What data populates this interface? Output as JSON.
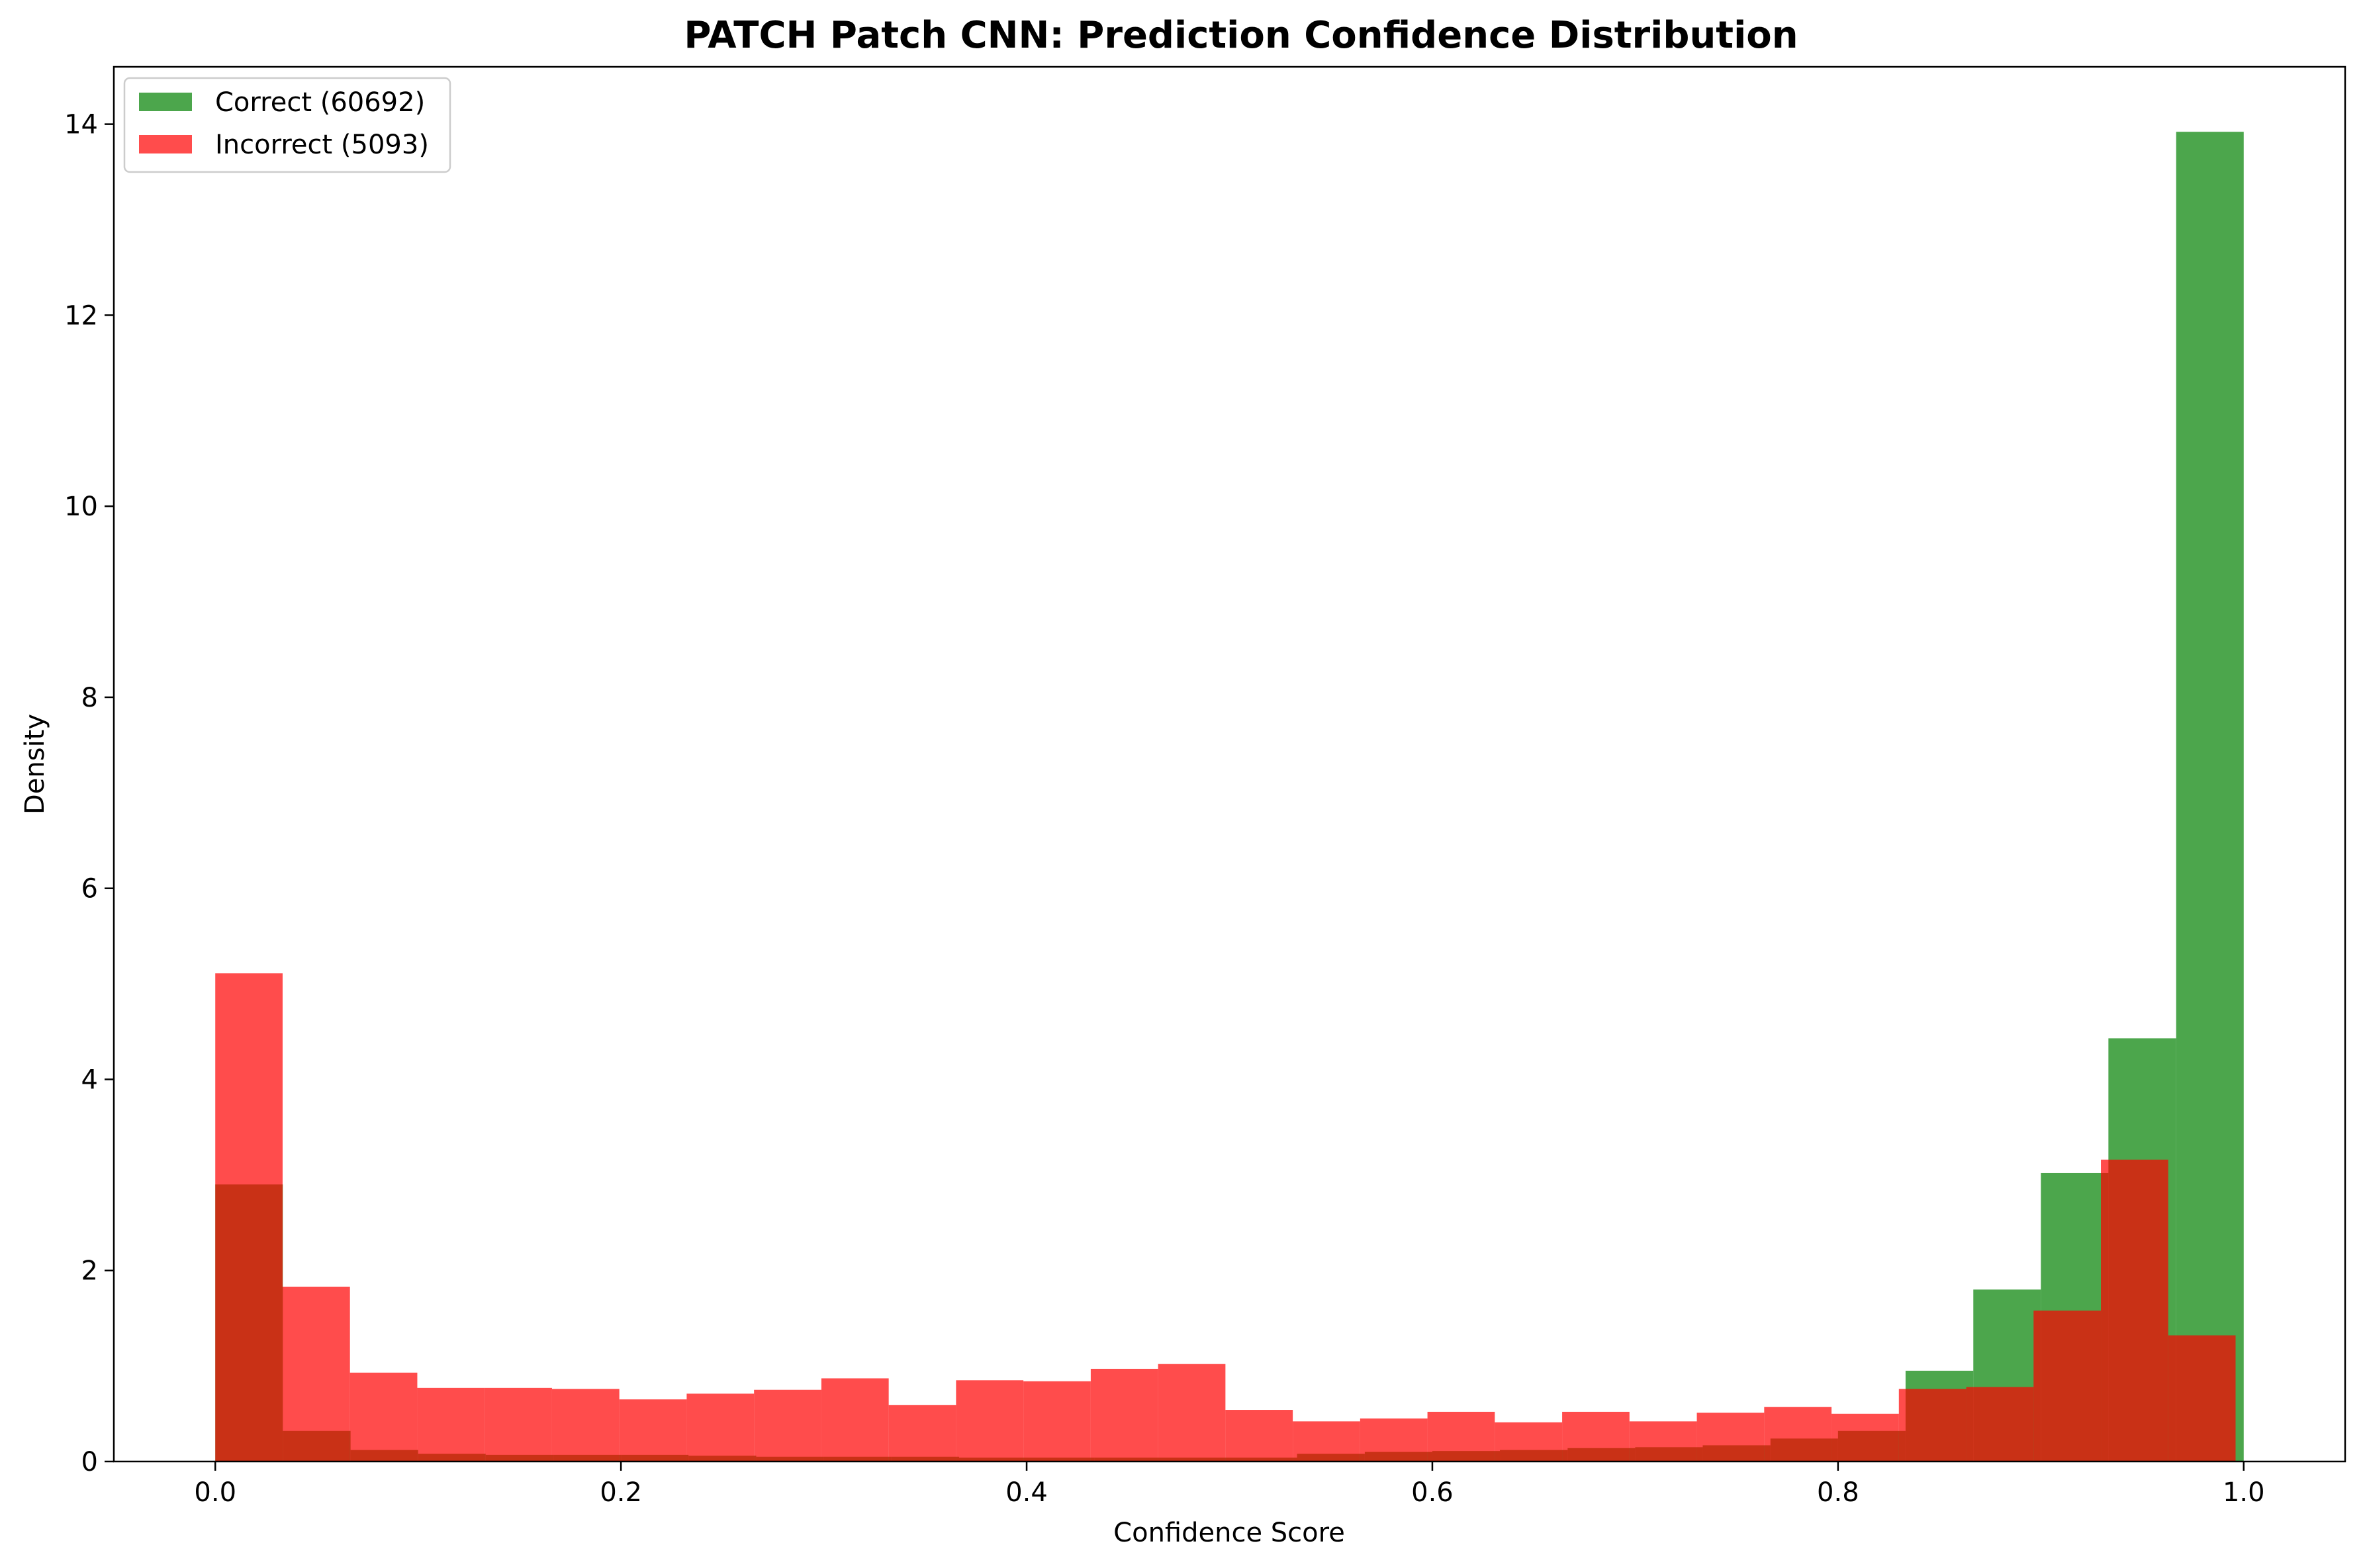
{
  "chart_data": {
    "type": "bar",
    "title": "PATCH Patch CNN: Prediction Confidence Distribution",
    "xlabel": "Confidence Score",
    "ylabel": "Density",
    "xlim": [
      -0.05,
      1.05
    ],
    "ylim": [
      0,
      14.6
    ],
    "xticks": [
      0.0,
      0.2,
      0.4,
      0.6,
      0.8,
      1.0
    ],
    "xtick_labels": [
      "0.0",
      "0.2",
      "0.4",
      "0.6",
      "0.8",
      "1.0"
    ],
    "yticks": [
      0,
      2,
      4,
      6,
      8,
      10,
      12,
      14
    ],
    "ytick_labels": [
      "0",
      "2",
      "4",
      "6",
      "8",
      "10",
      "12",
      "14"
    ],
    "grid": false,
    "legend_position": "top-left",
    "series": [
      {
        "name": "Correct (60692)",
        "color": "#008000",
        "opacity": 0.7,
        "bins": [
          0.0,
          0.0333,
          0.0667,
          0.1,
          0.1333,
          0.1667,
          0.2,
          0.2333,
          0.2667,
          0.3,
          0.3333,
          0.3667,
          0.4,
          0.4333,
          0.4667,
          0.5,
          0.5333,
          0.5667,
          0.6,
          0.6333,
          0.6667,
          0.7,
          0.7333,
          0.7667,
          0.8,
          0.8333,
          0.8667,
          0.9,
          0.9333,
          0.9667,
          1.0
        ],
        "values": [
          2.9,
          0.32,
          0.12,
          0.08,
          0.07,
          0.07,
          0.07,
          0.06,
          0.05,
          0.05,
          0.05,
          0.04,
          0.04,
          0.04,
          0.04,
          0.04,
          0.08,
          0.1,
          0.11,
          0.12,
          0.14,
          0.15,
          0.17,
          0.24,
          0.32,
          0.95,
          1.8,
          3.02,
          4.43,
          13.92
        ]
      },
      {
        "name": "Incorrect (5093)",
        "color": "#ff0000",
        "opacity": 0.7,
        "bins": [
          0.0,
          0.0332,
          0.0664,
          0.0996,
          0.1328,
          0.166,
          0.1992,
          0.2324,
          0.2656,
          0.2988,
          0.332,
          0.3652,
          0.3984,
          0.4316,
          0.4648,
          0.498,
          0.5312,
          0.5644,
          0.5976,
          0.6308,
          0.664,
          0.6972,
          0.7304,
          0.7636,
          0.7968,
          0.83,
          0.8632,
          0.8964,
          0.9296,
          0.9628,
          0.996
        ],
        "values": [
          5.11,
          1.83,
          0.93,
          0.77,
          0.77,
          0.76,
          0.65,
          0.71,
          0.75,
          0.87,
          0.59,
          0.85,
          0.84,
          0.97,
          1.02,
          0.54,
          0.42,
          0.45,
          0.52,
          0.41,
          0.52,
          0.42,
          0.51,
          0.57,
          0.5,
          0.76,
          0.78,
          1.58,
          3.16,
          1.32
        ]
      }
    ]
  }
}
